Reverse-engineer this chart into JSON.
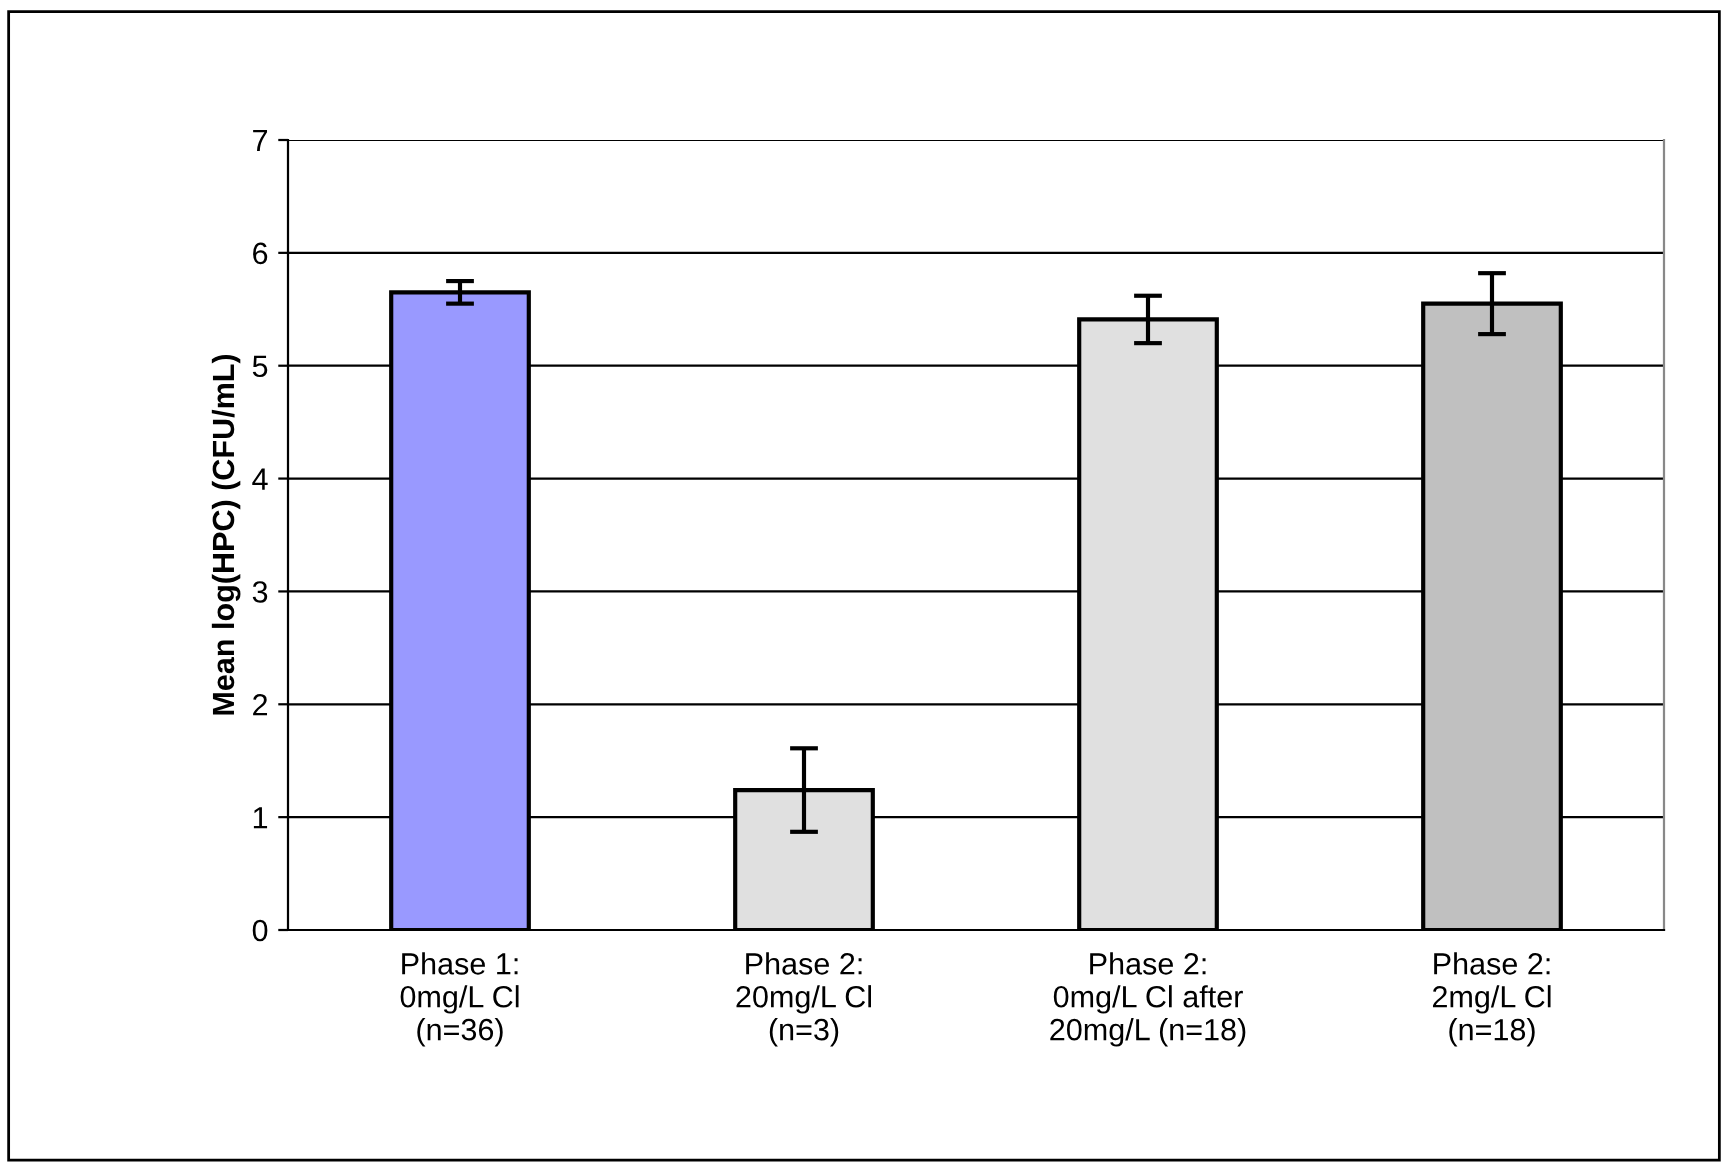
{
  "chart_data": {
    "type": "bar",
    "ylabel": "Mean log(HPC) (CFU/mL)",
    "categories": [
      "Phase 1:\n0mg/L Cl\n(n=36)",
      "Phase 2:\n20mg/L Cl\n(n=3)",
      "Phase 2:\n0mg/L Cl after\n20mg/L (n=18)",
      "Phase 2:\n2mg/L Cl\n(n=18)"
    ],
    "values": [
      5.65,
      1.24,
      5.41,
      5.55
    ],
    "errors": [
      0.1,
      0.37,
      0.21,
      0.27
    ],
    "colors": [
      "#9999ff",
      "#e0e0e0",
      "#e0e0e0",
      "#c0c0c0"
    ],
    "ylim": [
      0,
      7
    ],
    "yticks": [
      0,
      1,
      2,
      3,
      4,
      5,
      6,
      7
    ],
    "grid": "y"
  }
}
